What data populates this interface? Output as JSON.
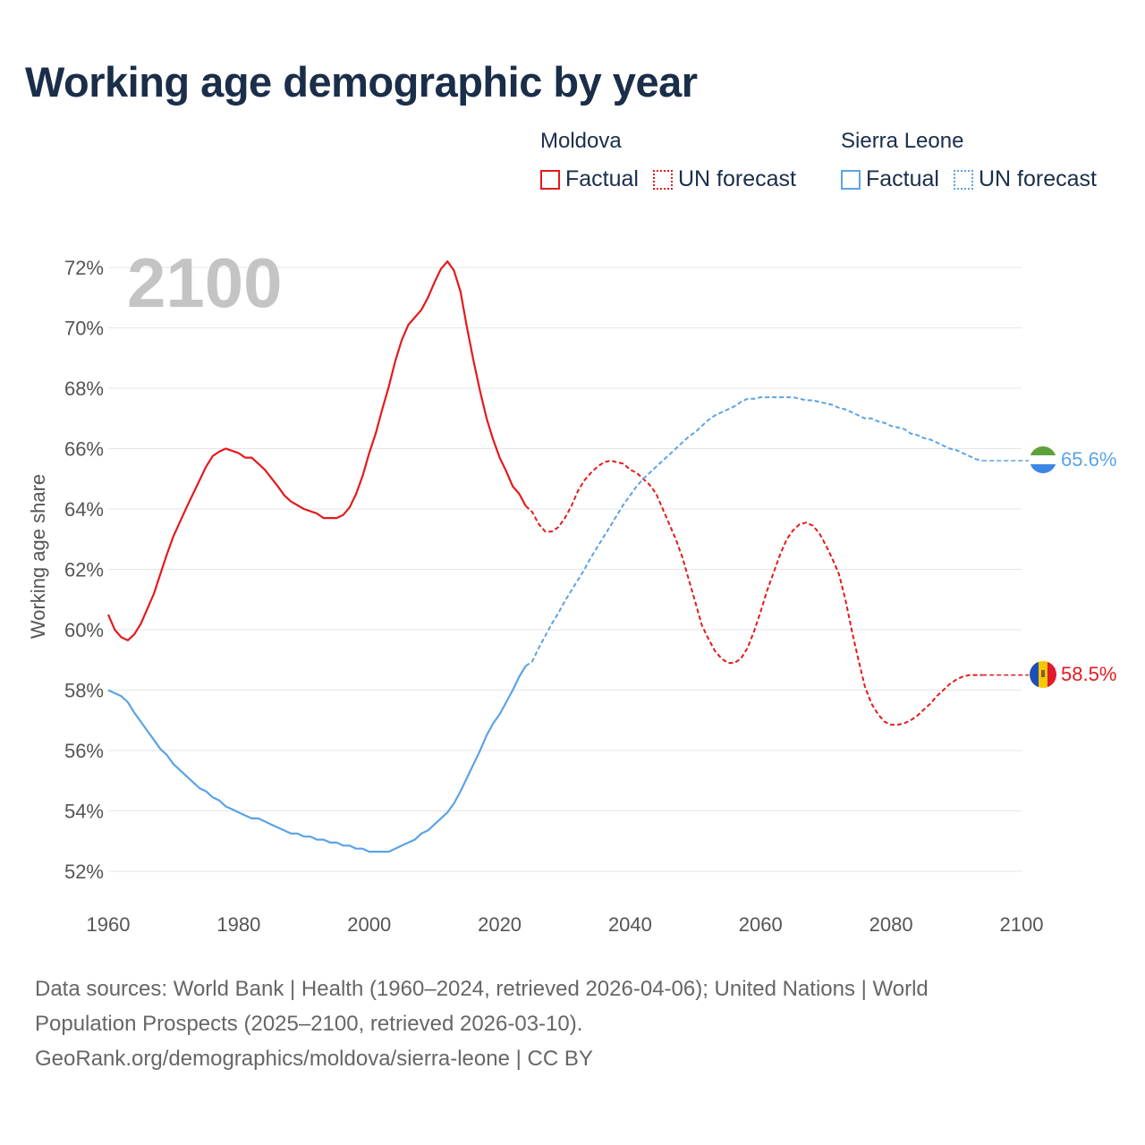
{
  "title": "Working age demographic by year",
  "legend": {
    "groups": [
      {
        "name": "Moldova",
        "factual_label": "Factual",
        "forecast_label": "UN forecast",
        "color": "#e41a1c"
      },
      {
        "name": "Sierra Leone",
        "factual_label": "Factual",
        "forecast_label": "UN forecast",
        "color": "#5ba3e6"
      }
    ]
  },
  "footer": {
    "line1": "Data sources: World Bank | Health (1960–2024, retrieved 2026-04-06); United Nations | World",
    "line2": "Population Prospects (2025–2100, retrieved 2026-03-10).",
    "line3": "GeoRank.org/demographics/moldova/sierra-leone | CC BY"
  },
  "chart_data": {
    "type": "line",
    "title": "Working age demographic by year",
    "year_label": "2100",
    "xlabel": "",
    "ylabel": "Working age share",
    "xlim": [
      1960,
      2100
    ],
    "ylim": [
      52,
      72
    ],
    "x_ticks": [
      "1960",
      "1980",
      "2000",
      "2020",
      "2040",
      "2060",
      "2080",
      "2100"
    ],
    "y_ticks": [
      "52%",
      "54%",
      "56%",
      "58%",
      "60%",
      "62%",
      "64%",
      "66%",
      "68%",
      "70%",
      "72%"
    ],
    "forecast_start": 2024,
    "series": [
      {
        "name": "Moldova",
        "color": "#e41a1c",
        "end_label": "58.5%",
        "flag": "moldova-flag-icon",
        "points": [
          [
            1960,
            60.5
          ],
          [
            1961,
            60.0
          ],
          [
            1962,
            59.75
          ],
          [
            1963,
            59.65
          ],
          [
            1964,
            59.85
          ],
          [
            1965,
            60.2
          ],
          [
            1966,
            60.7
          ],
          [
            1967,
            61.2
          ],
          [
            1968,
            61.85
          ],
          [
            1969,
            62.5
          ],
          [
            1970,
            63.1
          ],
          [
            1972,
            64.05
          ],
          [
            1974,
            64.95
          ],
          [
            1975,
            65.4
          ],
          [
            1976,
            65.75
          ],
          [
            1977,
            65.9
          ],
          [
            1978,
            66.0
          ],
          [
            1980,
            65.85
          ],
          [
            1981,
            65.7
          ],
          [
            1982,
            65.7
          ],
          [
            1984,
            65.3
          ],
          [
            1986,
            64.75
          ],
          [
            1987,
            64.45
          ],
          [
            1988,
            64.25
          ],
          [
            1990,
            64.0
          ],
          [
            1992,
            63.85
          ],
          [
            1993,
            63.7
          ],
          [
            1995,
            63.7
          ],
          [
            1996,
            63.8
          ],
          [
            1997,
            64.05
          ],
          [
            1998,
            64.5
          ],
          [
            1999,
            65.1
          ],
          [
            2000,
            65.85
          ],
          [
            2001,
            66.5
          ],
          [
            2002,
            67.3
          ],
          [
            2003,
            68.05
          ],
          [
            2004,
            68.9
          ],
          [
            2005,
            69.6
          ],
          [
            2006,
            70.1
          ],
          [
            2008,
            70.6
          ],
          [
            2009,
            71.0
          ],
          [
            2010,
            71.5
          ],
          [
            2011,
            71.95
          ],
          [
            2012,
            72.2
          ],
          [
            2013,
            71.9
          ],
          [
            2014,
            71.2
          ],
          [
            2015,
            70.0
          ],
          [
            2016,
            68.9
          ],
          [
            2017,
            67.9
          ],
          [
            2018,
            67.0
          ],
          [
            2019,
            66.3
          ],
          [
            2020,
            65.7
          ],
          [
            2021,
            65.25
          ],
          [
            2022,
            64.75
          ],
          [
            2023,
            64.5
          ],
          [
            2024,
            64.1
          ]
        ],
        "forecast_points": [
          [
            2024,
            64.1
          ],
          [
            2025,
            63.9
          ],
          [
            2026,
            63.5
          ],
          [
            2027,
            63.25
          ],
          [
            2028,
            63.25
          ],
          [
            2029,
            63.4
          ],
          [
            2030,
            63.7
          ],
          [
            2031,
            64.1
          ],
          [
            2032,
            64.6
          ],
          [
            2033,
            64.95
          ],
          [
            2034,
            65.2
          ],
          [
            2035,
            65.4
          ],
          [
            2036,
            65.55
          ],
          [
            2037,
            65.6
          ],
          [
            2038,
            65.55
          ],
          [
            2039,
            65.5
          ],
          [
            2040,
            65.3
          ],
          [
            2041,
            65.2
          ],
          [
            2042,
            65.0
          ],
          [
            2043,
            64.8
          ],
          [
            2044,
            64.5
          ],
          [
            2045,
            64.0
          ],
          [
            2046,
            63.5
          ],
          [
            2047,
            63.0
          ],
          [
            2048,
            62.4
          ],
          [
            2049,
            61.65
          ],
          [
            2050,
            60.9
          ],
          [
            2051,
            60.15
          ],
          [
            2052,
            59.7
          ],
          [
            2053,
            59.3
          ],
          [
            2054,
            59.05
          ],
          [
            2055,
            58.9
          ],
          [
            2056,
            58.9
          ],
          [
            2057,
            59.05
          ],
          [
            2058,
            59.4
          ],
          [
            2059,
            59.95
          ],
          [
            2060,
            60.6
          ],
          [
            2061,
            61.3
          ],
          [
            2062,
            61.9
          ],
          [
            2063,
            62.5
          ],
          [
            2064,
            63.0
          ],
          [
            2065,
            63.3
          ],
          [
            2066,
            63.5
          ],
          [
            2067,
            63.55
          ],
          [
            2068,
            63.45
          ],
          [
            2069,
            63.2
          ],
          [
            2070,
            62.8
          ],
          [
            2071,
            62.35
          ],
          [
            2072,
            61.85
          ],
          [
            2073,
            61.0
          ],
          [
            2074,
            59.95
          ],
          [
            2075,
            59.0
          ],
          [
            2076,
            58.1
          ],
          [
            2077,
            57.55
          ],
          [
            2078,
            57.2
          ],
          [
            2079,
            56.95
          ],
          [
            2080,
            56.85
          ],
          [
            2081,
            56.85
          ],
          [
            2082,
            56.9
          ],
          [
            2083,
            57.0
          ],
          [
            2084,
            57.15
          ],
          [
            2085,
            57.35
          ],
          [
            2086,
            57.55
          ],
          [
            2087,
            57.8
          ],
          [
            2088,
            58.0
          ],
          [
            2089,
            58.2
          ],
          [
            2090,
            58.35
          ],
          [
            2091,
            58.45
          ],
          [
            2092,
            58.5
          ],
          [
            2093,
            58.5
          ],
          [
            2094,
            58.5
          ]
        ]
      },
      {
        "name": "Sierra Leone",
        "color": "#5ba3e6",
        "end_label": "65.6%",
        "flag": "sierra-leone-flag-icon",
        "points": [
          [
            1960,
            58.0
          ],
          [
            1961,
            57.9
          ],
          [
            1962,
            57.8
          ],
          [
            1963,
            57.6
          ],
          [
            1964,
            57.25
          ],
          [
            1965,
            56.95
          ],
          [
            1966,
            56.65
          ],
          [
            1967,
            56.35
          ],
          [
            1968,
            56.05
          ],
          [
            1969,
            55.85
          ],
          [
            1970,
            55.55
          ],
          [
            1971,
            55.35
          ],
          [
            1972,
            55.15
          ],
          [
            1973,
            54.95
          ],
          [
            1974,
            54.75
          ],
          [
            1975,
            54.65
          ],
          [
            1976,
            54.45
          ],
          [
            1977,
            54.35
          ],
          [
            1978,
            54.15
          ],
          [
            1979,
            54.05
          ],
          [
            1980,
            53.95
          ],
          [
            1981,
            53.85
          ],
          [
            1982,
            53.75
          ],
          [
            1983,
            53.75
          ],
          [
            1984,
            53.65
          ],
          [
            1985,
            53.55
          ],
          [
            1986,
            53.45
          ],
          [
            1987,
            53.35
          ],
          [
            1988,
            53.25
          ],
          [
            1989,
            53.25
          ],
          [
            1990,
            53.15
          ],
          [
            1991,
            53.15
          ],
          [
            1992,
            53.05
          ],
          [
            1993,
            53.05
          ],
          [
            1994,
            52.95
          ],
          [
            1995,
            52.95
          ],
          [
            1996,
            52.85
          ],
          [
            1997,
            52.85
          ],
          [
            1998,
            52.75
          ],
          [
            1999,
            52.75
          ],
          [
            2000,
            52.65
          ],
          [
            2001,
            52.65
          ],
          [
            2002,
            52.65
          ],
          [
            2003,
            52.65
          ],
          [
            2004,
            52.75
          ],
          [
            2005,
            52.85
          ],
          [
            2006,
            52.95
          ],
          [
            2007,
            53.05
          ],
          [
            2008,
            53.25
          ],
          [
            2009,
            53.35
          ],
          [
            2010,
            53.55
          ],
          [
            2011,
            53.75
          ],
          [
            2012,
            53.95
          ],
          [
            2013,
            54.25
          ],
          [
            2014,
            54.65
          ],
          [
            2015,
            55.1
          ],
          [
            2016,
            55.55
          ],
          [
            2017,
            56.0
          ],
          [
            2018,
            56.5
          ],
          [
            2019,
            56.9
          ],
          [
            2020,
            57.2
          ],
          [
            2021,
            57.6
          ],
          [
            2022,
            58.0
          ],
          [
            2023,
            58.45
          ],
          [
            2024,
            58.8
          ]
        ],
        "forecast_points": [
          [
            2024,
            58.8
          ],
          [
            2025,
            58.95
          ],
          [
            2026,
            59.4
          ],
          [
            2027,
            59.8
          ],
          [
            2028,
            60.2
          ],
          [
            2029,
            60.55
          ],
          [
            2030,
            60.95
          ],
          [
            2031,
            61.3
          ],
          [
            2032,
            61.65
          ],
          [
            2033,
            62.0
          ],
          [
            2034,
            62.4
          ],
          [
            2035,
            62.75
          ],
          [
            2036,
            63.1
          ],
          [
            2037,
            63.45
          ],
          [
            2038,
            63.8
          ],
          [
            2039,
            64.15
          ],
          [
            2040,
            64.45
          ],
          [
            2041,
            64.75
          ],
          [
            2042,
            65.0
          ],
          [
            2043,
            65.2
          ],
          [
            2044,
            65.4
          ],
          [
            2045,
            65.6
          ],
          [
            2046,
            65.8
          ],
          [
            2047,
            66.0
          ],
          [
            2048,
            66.2
          ],
          [
            2049,
            66.4
          ],
          [
            2050,
            66.55
          ],
          [
            2051,
            66.75
          ],
          [
            2052,
            66.95
          ],
          [
            2053,
            67.1
          ],
          [
            2054,
            67.2
          ],
          [
            2055,
            67.3
          ],
          [
            2056,
            67.4
          ],
          [
            2057,
            67.55
          ],
          [
            2058,
            67.65
          ],
          [
            2059,
            67.65
          ],
          [
            2060,
            67.7
          ],
          [
            2061,
            67.7
          ],
          [
            2062,
            67.7
          ],
          [
            2063,
            67.7
          ],
          [
            2064,
            67.7
          ],
          [
            2065,
            67.7
          ],
          [
            2066,
            67.65
          ],
          [
            2067,
            67.6
          ],
          [
            2068,
            67.6
          ],
          [
            2069,
            67.55
          ],
          [
            2070,
            67.5
          ],
          [
            2071,
            67.45
          ],
          [
            2072,
            67.35
          ],
          [
            2073,
            67.3
          ],
          [
            2074,
            67.2
          ],
          [
            2075,
            67.1
          ],
          [
            2076,
            67.0
          ],
          [
            2077,
            67.0
          ],
          [
            2078,
            66.9
          ],
          [
            2079,
            66.85
          ],
          [
            2080,
            66.75
          ],
          [
            2081,
            66.7
          ],
          [
            2082,
            66.65
          ],
          [
            2083,
            66.5
          ],
          [
            2084,
            66.45
          ],
          [
            2085,
            66.35
          ],
          [
            2086,
            66.3
          ],
          [
            2087,
            66.2
          ],
          [
            2088,
            66.1
          ],
          [
            2089,
            66.0
          ],
          [
            2090,
            65.95
          ],
          [
            2091,
            65.85
          ],
          [
            2092,
            65.75
          ],
          [
            2093,
            65.65
          ],
          [
            2094,
            65.6
          ]
        ]
      }
    ]
  }
}
